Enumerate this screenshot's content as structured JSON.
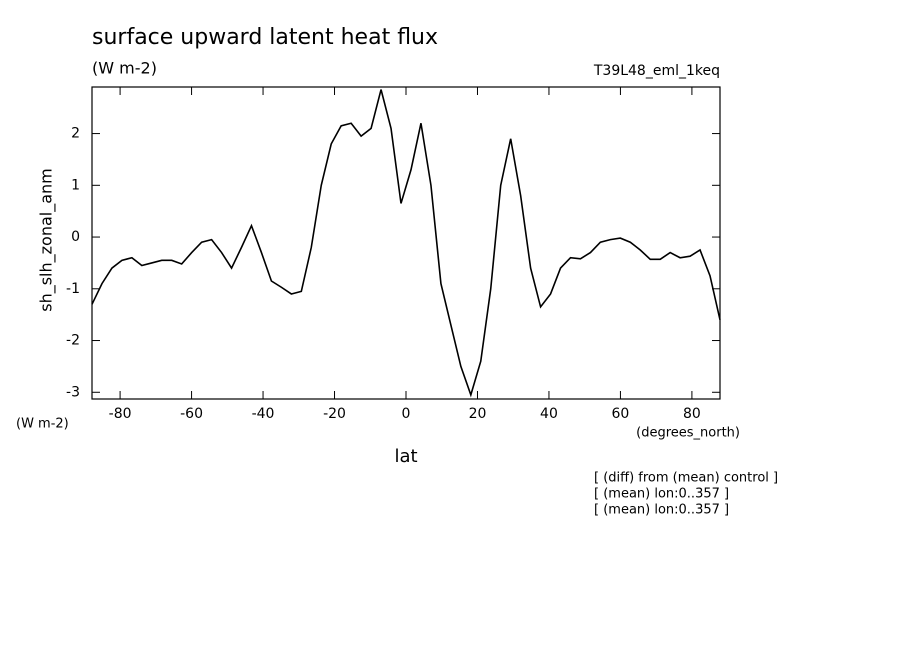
{
  "chart_data": {
    "type": "line",
    "title": "surface upward latent heat flux",
    "subtitle": "(W m-2)",
    "dataset_label": "T39L48_eml_1keq",
    "y_label": "sh_slh_zonal_anm",
    "y_units": "(W m-2)",
    "x_label": "lat",
    "x_units": "(degrees_north)",
    "notes": [
      "[ (diff) from (mean) control ]",
      "[ (mean) lon:0..357 ]",
      "[ (mean) lon:0..357 ]"
    ],
    "x": [
      -87.86,
      -85.07,
      -82.28,
      -79.49,
      -76.7,
      -73.92,
      -71.13,
      -68.34,
      -65.55,
      -62.76,
      -59.97,
      -57.18,
      -54.39,
      -51.6,
      -48.81,
      -46.03,
      -43.24,
      -40.45,
      -37.66,
      -34.87,
      -32.08,
      -29.29,
      -26.5,
      -23.71,
      -20.92,
      -18.14,
      -15.35,
      -12.56,
      -9.77,
      -6.98,
      -4.19,
      -1.4,
      1.4,
      4.19,
      6.98,
      9.77,
      12.56,
      15.35,
      18.14,
      20.92,
      23.71,
      26.5,
      29.29,
      32.08,
      34.87,
      37.66,
      40.45,
      43.24,
      46.03,
      48.81,
      51.6,
      54.39,
      57.18,
      59.97,
      62.76,
      65.55,
      68.34,
      71.13,
      73.92,
      76.7,
      79.49,
      82.28,
      85.07,
      87.86
    ],
    "values": [
      -1.3,
      -0.9,
      -0.6,
      -0.45,
      -0.4,
      -0.55,
      -0.5,
      -0.45,
      -0.45,
      -0.52,
      -0.3,
      -0.1,
      -0.05,
      -0.3,
      -0.6,
      -0.2,
      0.22,
      -0.3,
      -0.85,
      -0.97,
      -1.1,
      -1.05,
      -0.2,
      1.0,
      1.8,
      2.15,
      2.2,
      1.95,
      2.1,
      2.85,
      2.1,
      0.65,
      1.3,
      2.2,
      1.0,
      -0.9,
      -1.7,
      -2.5,
      -3.05,
      -2.4,
      -1.0,
      1.0,
      1.9,
      0.8,
      -0.6,
      -1.35,
      -1.1,
      -0.6,
      -0.4,
      -0.42,
      -0.3,
      -0.1,
      -0.05,
      -0.02,
      -0.1,
      -0.25,
      -0.43,
      -0.43,
      -0.3,
      -0.4,
      -0.37,
      -0.25,
      -0.75,
      -1.6
    ],
    "color": "#000000",
    "xlim": [
      -87.86,
      87.86
    ],
    "ylim": [
      -3.13,
      2.9
    ],
    "xticks": [
      -80,
      -60,
      -40,
      -20,
      0,
      20,
      40,
      60,
      80
    ],
    "yticks": [
      -3,
      -2,
      -1,
      0,
      1,
      2
    ]
  }
}
